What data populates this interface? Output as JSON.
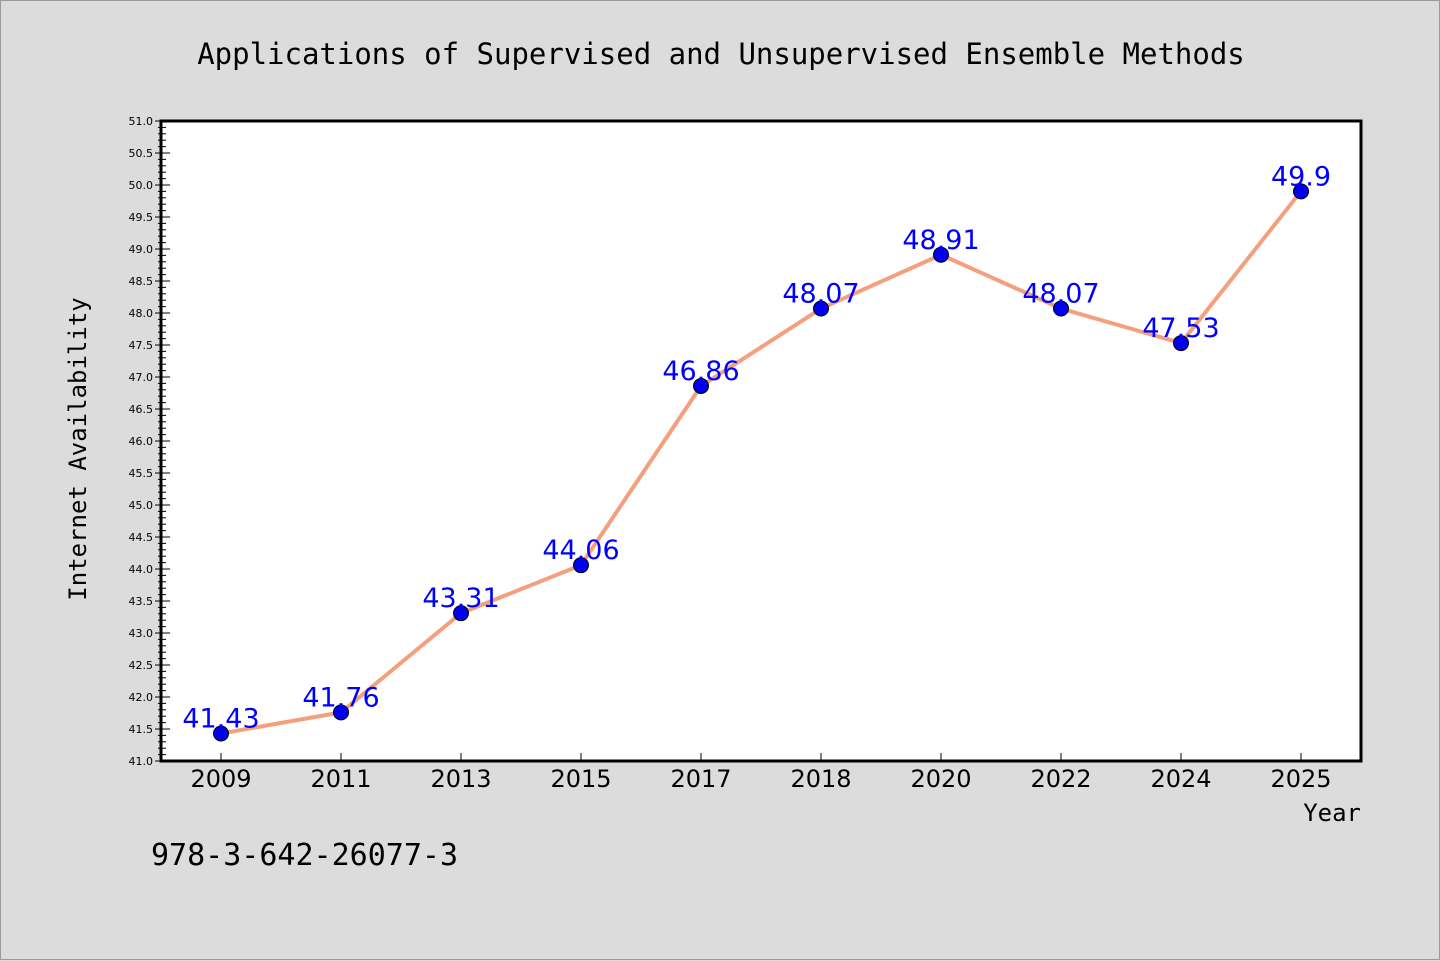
{
  "chart_data": {
    "type": "line",
    "title": "Applications of Supervised and Unsupervised Ensemble Methods",
    "xlabel": "Year",
    "ylabel": "Internet Availability",
    "categories": [
      "2009",
      "2011",
      "2013",
      "2015",
      "2017",
      "2018",
      "2020",
      "2022",
      "2024",
      "2025"
    ],
    "series": [
      {
        "values": [
          41.43,
          41.76,
          43.31,
          44.06,
          46.86,
          48.07,
          48.91,
          48.07,
          47.53,
          49.9
        ],
        "labels": [
          "41.43",
          "41.76",
          "43.31",
          "44.06",
          "46.86",
          "48.07",
          "48.91",
          "48.07",
          "47.53",
          "49.9"
        ],
        "line_color": "#f4a07e",
        "marker_color": "#0000ee"
      }
    ],
    "ylim": [
      41.0,
      51.0
    ],
    "yticks": [
      "41.0",
      "41.5",
      "42.0",
      "42.5",
      "43.0",
      "43.5",
      "44.0",
      "44.5",
      "45.0",
      "45.5",
      "46.0",
      "46.5",
      "47.0",
      "47.5",
      "48.0",
      "48.5",
      "49.0",
      "49.5",
      "50.0",
      "50.5",
      "51.0"
    ],
    "grid": false,
    "legend": "none",
    "data_label_color": "#0000ff"
  },
  "footer": {
    "isbn": "978-3-642-26077-3"
  }
}
